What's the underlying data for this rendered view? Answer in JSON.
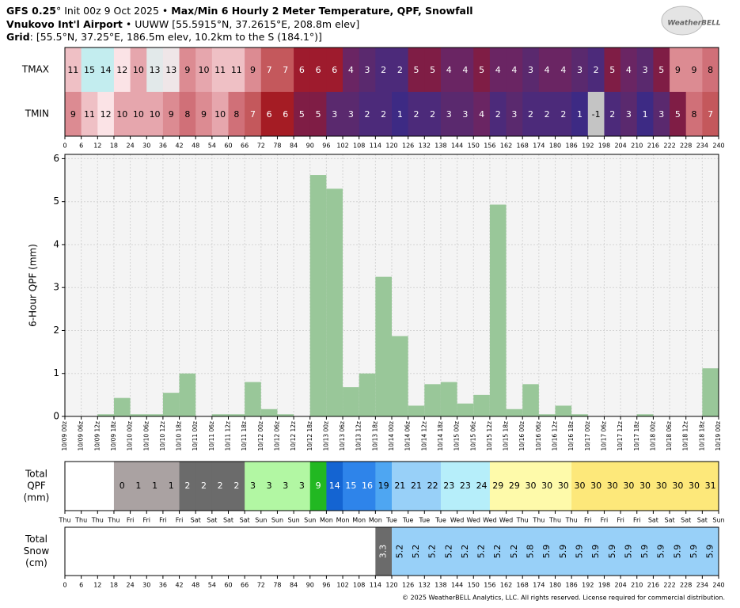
{
  "header": {
    "model": "GFS 0.25",
    "init": "° Init 00z 9 Oct 2025 • ",
    "title": "Max/Min 6 Hourly 2 Meter Temperature,  QPF,  Snowfall",
    "station": "Vnukovo Int'l Airport",
    "station_info": " • UUWW [55.5915°N, 37.2615°E, 208.8m elev]",
    "grid_label": "Grid",
    "grid_info": ": [55.5°N, 37.25°E, 186.5m elev, 10.2km to the S (184.1°)]",
    "logo": "WeatherBELL"
  },
  "footer": "© 2025 WeatherBELL Analytics, LLC. All rights reserved. License required for commercial distribution.",
  "chart_data": [
    {
      "type": "heatmap",
      "xlim": [
        0,
        240
      ],
      "xticks": [
        0,
        6,
        12,
        18,
        24,
        30,
        36,
        42,
        48,
        54,
        60,
        66,
        72,
        78,
        84,
        90,
        96,
        102,
        108,
        114,
        120,
        126,
        132,
        138,
        144,
        150,
        156,
        162,
        168,
        174,
        180,
        186,
        192,
        198,
        204,
        210,
        216,
        222,
        228,
        234,
        240
      ],
      "series": [
        {
          "name": "TMAX",
          "values": [
            11,
            15,
            14,
            12,
            10,
            13,
            13,
            9,
            10,
            11,
            11,
            9,
            7,
            7,
            6,
            6,
            6,
            4,
            3,
            2,
            2,
            5,
            5,
            4,
            4,
            5,
            4,
            4,
            3,
            4,
            4,
            3,
            2,
            5,
            4,
            3,
            5,
            9,
            9,
            8
          ],
          "colors": [
            "#efc0c5",
            "#c3edef",
            "#c3edef",
            "#fbe3e6",
            "#e6a6ad",
            "#e2e9ea",
            "#efe6e8",
            "#dc8b92",
            "#e6a6ad",
            "#efc0c5",
            "#efc0c5",
            "#dc8b92",
            "#c4585c",
            "#c4585c",
            "#9e1b2d",
            "#9e1b2d",
            "#9e1b2d",
            "#6a2563",
            "#5a296e",
            "#4c2a7a",
            "#4c2a7a",
            "#7f1d45",
            "#7f1d45",
            "#6a2563",
            "#6a2563",
            "#7f1d45",
            "#6a2563",
            "#6a2563",
            "#5a296e",
            "#6a2563",
            "#6a2563",
            "#5a296e",
            "#4c2a7a",
            "#7f1d45",
            "#6a2563",
            "#5a296e",
            "#7f1d45",
            "#dc8b92",
            "#dc8b92",
            "#d07078"
          ]
        },
        {
          "name": "TMIN",
          "values": [
            9,
            11,
            12,
            10,
            10,
            10,
            9,
            8,
            9,
            10,
            8,
            7,
            6,
            6,
            5,
            5,
            3,
            3,
            2,
            2,
            1,
            2,
            2,
            3,
            3,
            4,
            2,
            3,
            2,
            2,
            2,
            1,
            -1,
            2,
            3,
            1,
            3,
            5,
            8,
            7
          ],
          "colors": [
            "#dc8b92",
            "#efc0c5",
            "#fbe3e6",
            "#e6a6ad",
            "#e6a6ad",
            "#e6a6ad",
            "#dc8b92",
            "#d07078",
            "#dc8b92",
            "#e6a6ad",
            "#d07078",
            "#c4585c",
            "#a51c24",
            "#a51c24",
            "#7f1d45",
            "#7f1d45",
            "#5a296e",
            "#5a296e",
            "#4c2a7a",
            "#4c2a7a",
            "#3d2a84",
            "#4c2a7a",
            "#4c2a7a",
            "#5a296e",
            "#5a296e",
            "#6a2563",
            "#4c2a7a",
            "#5a296e",
            "#4c2a7a",
            "#4c2a7a",
            "#4c2a7a",
            "#3d2a84",
            "#c4c4c4",
            "#4c2a7a",
            "#5a296e",
            "#3d2a84",
            "#5a296e",
            "#7f1d45",
            "#d07078",
            "#c4585c"
          ]
        }
      ]
    },
    {
      "type": "histogram",
      "ylabel": "6-Hour QPF (mm)",
      "color": "#99c799",
      "grid": true,
      "xlim": [
        0,
        240
      ],
      "ylim": [
        0,
        6.1
      ],
      "yticks": [
        0,
        1,
        2,
        3,
        4,
        5,
        6
      ],
      "bins": [
        0,
        6,
        12,
        18,
        24,
        30,
        36,
        42,
        48,
        54,
        60,
        66,
        72,
        78,
        84,
        90,
        96,
        102,
        108,
        114,
        120,
        126,
        132,
        138,
        144,
        150,
        156,
        162,
        168,
        174,
        180,
        186,
        192,
        198,
        204,
        210,
        216,
        222,
        228,
        234,
        240
      ],
      "values": [
        0,
        0,
        0.05,
        0.43,
        0.05,
        0.05,
        0.55,
        1.0,
        0,
        0.05,
        0.05,
        0.8,
        0.17,
        0.05,
        0,
        5.62,
        5.3,
        0.68,
        1.0,
        3.25,
        1.87,
        0.25,
        0.75,
        0.8,
        0.3,
        0.5,
        4.93,
        0.17,
        0.75,
        0.05,
        0.25,
        0.05,
        0,
        0,
        0,
        0.05,
        0,
        0,
        0,
        1.12
      ],
      "xticks": [
        {
          "value": 0,
          "label": "10/09 00z"
        },
        {
          "value": 6,
          "label": "10/09 06z"
        },
        {
          "value": 12,
          "label": "10/09 12z"
        },
        {
          "value": 18,
          "label": "10/09 18z"
        },
        {
          "value": 24,
          "label": "10/10 00z"
        },
        {
          "value": 30,
          "label": "10/10 06z"
        },
        {
          "value": 36,
          "label": "10/10 12z"
        },
        {
          "value": 42,
          "label": "10/10 18z"
        },
        {
          "value": 48,
          "label": "10/11 00z"
        },
        {
          "value": 54,
          "label": "10/11 06z"
        },
        {
          "value": 60,
          "label": "10/11 12z"
        },
        {
          "value": 66,
          "label": "10/11 18z"
        },
        {
          "value": 72,
          "label": "10/12 00z"
        },
        {
          "value": 78,
          "label": "10/12 06z"
        },
        {
          "value": 84,
          "label": "10/12 12z"
        },
        {
          "value": 90,
          "label": "10/12 18z"
        },
        {
          "value": 96,
          "label": "10/13 00z"
        },
        {
          "value": 102,
          "label": "10/13 06z"
        },
        {
          "value": 108,
          "label": "10/13 12z"
        },
        {
          "value": 114,
          "label": "10/13 18z"
        },
        {
          "value": 120,
          "label": "10/14 00z"
        },
        {
          "value": 126,
          "label": "10/14 06z"
        },
        {
          "value": 132,
          "label": "10/14 12z"
        },
        {
          "value": 138,
          "label": "10/14 18z"
        },
        {
          "value": 144,
          "label": "10/15 00z"
        },
        {
          "value": 150,
          "label": "10/15 06z"
        },
        {
          "value": 156,
          "label": "10/15 12z"
        },
        {
          "value": 162,
          "label": "10/15 18z"
        },
        {
          "value": 168,
          "label": "10/16 00z"
        },
        {
          "value": 174,
          "label": "10/16 06z"
        },
        {
          "value": 180,
          "label": "10/16 12z"
        },
        {
          "value": 186,
          "label": "10/16 18z"
        },
        {
          "value": 192,
          "label": "10/17 00z"
        },
        {
          "value": 198,
          "label": "10/17 06z"
        },
        {
          "value": 204,
          "label": "10/17 12z"
        },
        {
          "value": 210,
          "label": "10/17 18z"
        },
        {
          "value": 216,
          "label": "10/18 00z"
        },
        {
          "value": 222,
          "label": "10/18 06z"
        },
        {
          "value": 228,
          "label": "10/18 12z"
        },
        {
          "value": 234,
          "label": "10/18 18z"
        },
        {
          "value": 240,
          "label": "10/19 00z"
        }
      ]
    },
    {
      "type": "strip",
      "label_lines": [
        "Total",
        "QPF",
        "(mm)"
      ],
      "xlim": [
        0,
        240
      ],
      "values": [
        null,
        null,
        null,
        0,
        1,
        1,
        1,
        2,
        2,
        2,
        2,
        3,
        3,
        3,
        3,
        9,
        14,
        15,
        16,
        19,
        21,
        21,
        22,
        23,
        23,
        24,
        29,
        29,
        30,
        30,
        30,
        30,
        30,
        30,
        30,
        30,
        30,
        30,
        30,
        31
      ],
      "colors": [
        null,
        null,
        null,
        "#aaa2a2",
        "#aaa2a2",
        "#aaa2a2",
        "#aaa2a2",
        "#6b6b6b",
        "#6b6b6b",
        "#6b6b6b",
        "#6b6b6b",
        "#b2f7a3",
        "#b2f7a3",
        "#b2f7a3",
        "#b2f7a3",
        "#22b822",
        "#1464d2",
        "#2e84ea",
        "#2e84ea",
        "#4ea6f2",
        "#98d0f8",
        "#98d0f8",
        "#98d0f8",
        "#b6eefa",
        "#b6eefa",
        "#b6eefa",
        "#fefaaa",
        "#fefaaa",
        "#fefaaa",
        "#fefaaa",
        "#fefaaa",
        "#fde87a",
        "#fde87a",
        "#fde87a",
        "#fde87a",
        "#fde87a",
        "#fde87a",
        "#fde87a",
        "#fde87a",
        "#fde87a"
      ],
      "xticks": [
        {
          "value": 0,
          "label": "Thu"
        },
        {
          "value": 6,
          "label": "Thu"
        },
        {
          "value": 12,
          "label": "Thu"
        },
        {
          "value": 18,
          "label": "Thu"
        },
        {
          "value": 24,
          "label": "Fri"
        },
        {
          "value": 30,
          "label": "Fri"
        },
        {
          "value": 36,
          "label": "Fri"
        },
        {
          "value": 42,
          "label": "Fri"
        },
        {
          "value": 48,
          "label": "Sat"
        },
        {
          "value": 54,
          "label": "Sat"
        },
        {
          "value": 60,
          "label": "Sat"
        },
        {
          "value": 66,
          "label": "Sat"
        },
        {
          "value": 72,
          "label": "Sun"
        },
        {
          "value": 78,
          "label": "Sun"
        },
        {
          "value": 84,
          "label": "Sun"
        },
        {
          "value": 90,
          "label": "Sun"
        },
        {
          "value": 96,
          "label": "Mon"
        },
        {
          "value": 102,
          "label": "Mon"
        },
        {
          "value": 108,
          "label": "Mon"
        },
        {
          "value": 114,
          "label": "Mon"
        },
        {
          "value": 120,
          "label": "Tue"
        },
        {
          "value": 126,
          "label": "Tue"
        },
        {
          "value": 132,
          "label": "Tue"
        },
        {
          "value": 138,
          "label": "Tue"
        },
        {
          "value": 144,
          "label": "Wed"
        },
        {
          "value": 150,
          "label": "Wed"
        },
        {
          "value": 156,
          "label": "Wed"
        },
        {
          "value": 162,
          "label": "Wed"
        },
        {
          "value": 168,
          "label": "Thu"
        },
        {
          "value": 174,
          "label": "Thu"
        },
        {
          "value": 180,
          "label": "Thu"
        },
        {
          "value": 186,
          "label": "Thu"
        },
        {
          "value": 192,
          "label": "Fri"
        },
        {
          "value": 198,
          "label": "Fri"
        },
        {
          "value": 204,
          "label": "Fri"
        },
        {
          "value": 210,
          "label": "Fri"
        },
        {
          "value": 216,
          "label": "Sat"
        },
        {
          "value": 222,
          "label": "Sat"
        },
        {
          "value": 228,
          "label": "Sat"
        },
        {
          "value": 234,
          "label": "Sat"
        },
        {
          "value": 240,
          "label": "Sun"
        }
      ]
    },
    {
      "type": "strip",
      "label_lines": [
        "Total",
        "Snow",
        "(cm)"
      ],
      "xlim": [
        0,
        240
      ],
      "values": [
        null,
        null,
        null,
        null,
        null,
        null,
        null,
        null,
        null,
        null,
        null,
        null,
        null,
        null,
        null,
        null,
        null,
        null,
        null,
        3.3,
        5.2,
        5.2,
        5.2,
        5.2,
        5.2,
        5.2,
        5.2,
        5.2,
        5.8,
        5.9,
        5.9,
        5.9,
        5.9,
        5.9,
        5.9,
        5.9,
        5.9,
        5.9,
        5.9,
        5.9
      ],
      "colors": [
        null,
        null,
        null,
        null,
        null,
        null,
        null,
        null,
        null,
        null,
        null,
        null,
        null,
        null,
        null,
        null,
        null,
        null,
        null,
        "#6b6b6b",
        "#98d0f8",
        "#98d0f8",
        "#98d0f8",
        "#98d0f8",
        "#98d0f8",
        "#98d0f8",
        "#98d0f8",
        "#98d0f8",
        "#98d0f8",
        "#98d0f8",
        "#98d0f8",
        "#98d0f8",
        "#98d0f8",
        "#98d0f8",
        "#98d0f8",
        "#98d0f8",
        "#98d0f8",
        "#98d0f8",
        "#98d0f8",
        "#98d0f8"
      ],
      "xticks": [
        0,
        6,
        12,
        18,
        24,
        30,
        36,
        42,
        48,
        54,
        60,
        66,
        72,
        78,
        84,
        90,
        96,
        102,
        108,
        114,
        120,
        126,
        132,
        138,
        144,
        150,
        156,
        162,
        168,
        174,
        180,
        186,
        192,
        198,
        204,
        210,
        216,
        222,
        228,
        234,
        240
      ]
    }
  ]
}
